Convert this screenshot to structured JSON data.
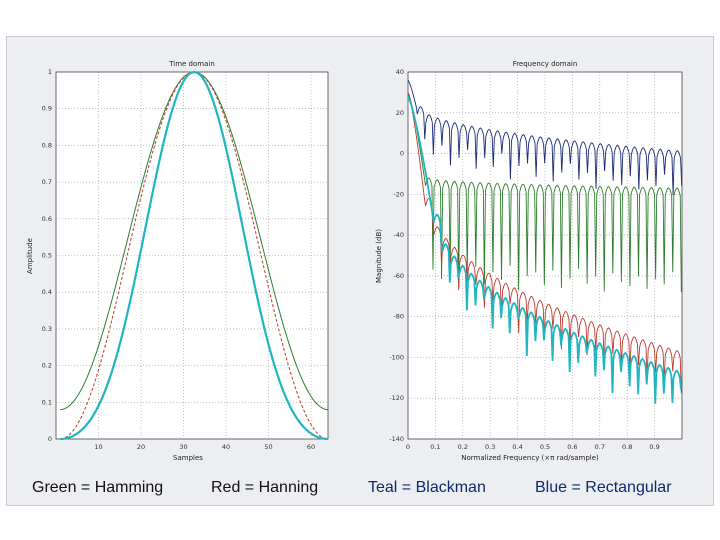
{
  "chart_data": [
    {
      "type": "line",
      "title": "Time domain",
      "xlabel": "Samples",
      "ylabel": "Amplitude",
      "xlim": [
        0,
        64
      ],
      "ylim": [
        0,
        1
      ],
      "grid": true,
      "x_ticks": [
        "10",
        "20",
        "30",
        "40",
        "50",
        "60"
      ],
      "y_ticks": [
        "0",
        "0.1",
        "0.2",
        "0.3",
        "0.4",
        "0.5",
        "0.6",
        "0.7",
        "0.8",
        "0.9",
        "1"
      ],
      "window_length": 64,
      "series": [
        {
          "name": "Hamming",
          "color": "#2e7d2e",
          "style": "line",
          "window": "hamming"
        },
        {
          "name": "Hanning",
          "color": "#c0392b",
          "style": "dashed",
          "window": "hanning"
        },
        {
          "name": "Blackman",
          "color": "#1fb6c1",
          "style": "thick",
          "window": "blackman"
        },
        {
          "name": "Rectangular",
          "color": "#1c2a78",
          "style": "none",
          "window": "rectangular"
        }
      ]
    },
    {
      "type": "line",
      "title": "Frequency domain",
      "xlabel": "Normalized Frequency (×π rad/sample)",
      "ylabel": "Magnitude (dB)",
      "xlim": [
        0,
        1
      ],
      "ylim": [
        -140,
        40
      ],
      "grid": true,
      "x_ticks": [
        "0",
        "0.1",
        "0.2",
        "0.3",
        "0.4",
        "0.5",
        "0.6",
        "0.7",
        "0.8",
        "0.9"
      ],
      "y_ticks": [
        "-140",
        "-120",
        "-100",
        "-80",
        "-60",
        "-40",
        "-20",
        "0",
        "20",
        "40"
      ],
      "series": [
        {
          "name": "Rectangular",
          "color": "#1c2a78",
          "peak_db": 36,
          "sidelobe_start_db": 23,
          "sidelobe_end_db": 1,
          "notch_depth_db": 16,
          "main_lobe_end": 0.03
        },
        {
          "name": "Hamming",
          "color": "#2e7d2e",
          "peak_db": 30,
          "sidelobe_start_db": -12,
          "sidelobe_end_db": -17,
          "notch_depth_db": 45,
          "main_lobe_end": 0.06
        },
        {
          "name": "Hanning",
          "color": "#c0392b",
          "peak_db": 30,
          "sidelobe_start_db": -22,
          "sidelobe_end_db": -98,
          "notch_depth_db": 15,
          "main_lobe_end": 0.06
        },
        {
          "name": "Blackman",
          "color": "#1fb6c1",
          "peak_db": 28,
          "sidelobe_start_db": -30,
          "sidelobe_end_db": -108,
          "notch_depth_db": 14,
          "main_lobe_end": 0.09
        }
      ]
    }
  ],
  "legend": {
    "green": {
      "text": "Green = Hamming",
      "color": "#2e7d2e"
    },
    "red": {
      "text": "Red = Hanning",
      "color": "#c0392b"
    },
    "teal": {
      "text": "Teal = Blackman",
      "color": "#1fb6c1"
    },
    "blue": {
      "text": "Blue = Rectangular",
      "color": "#1c2a78"
    }
  }
}
